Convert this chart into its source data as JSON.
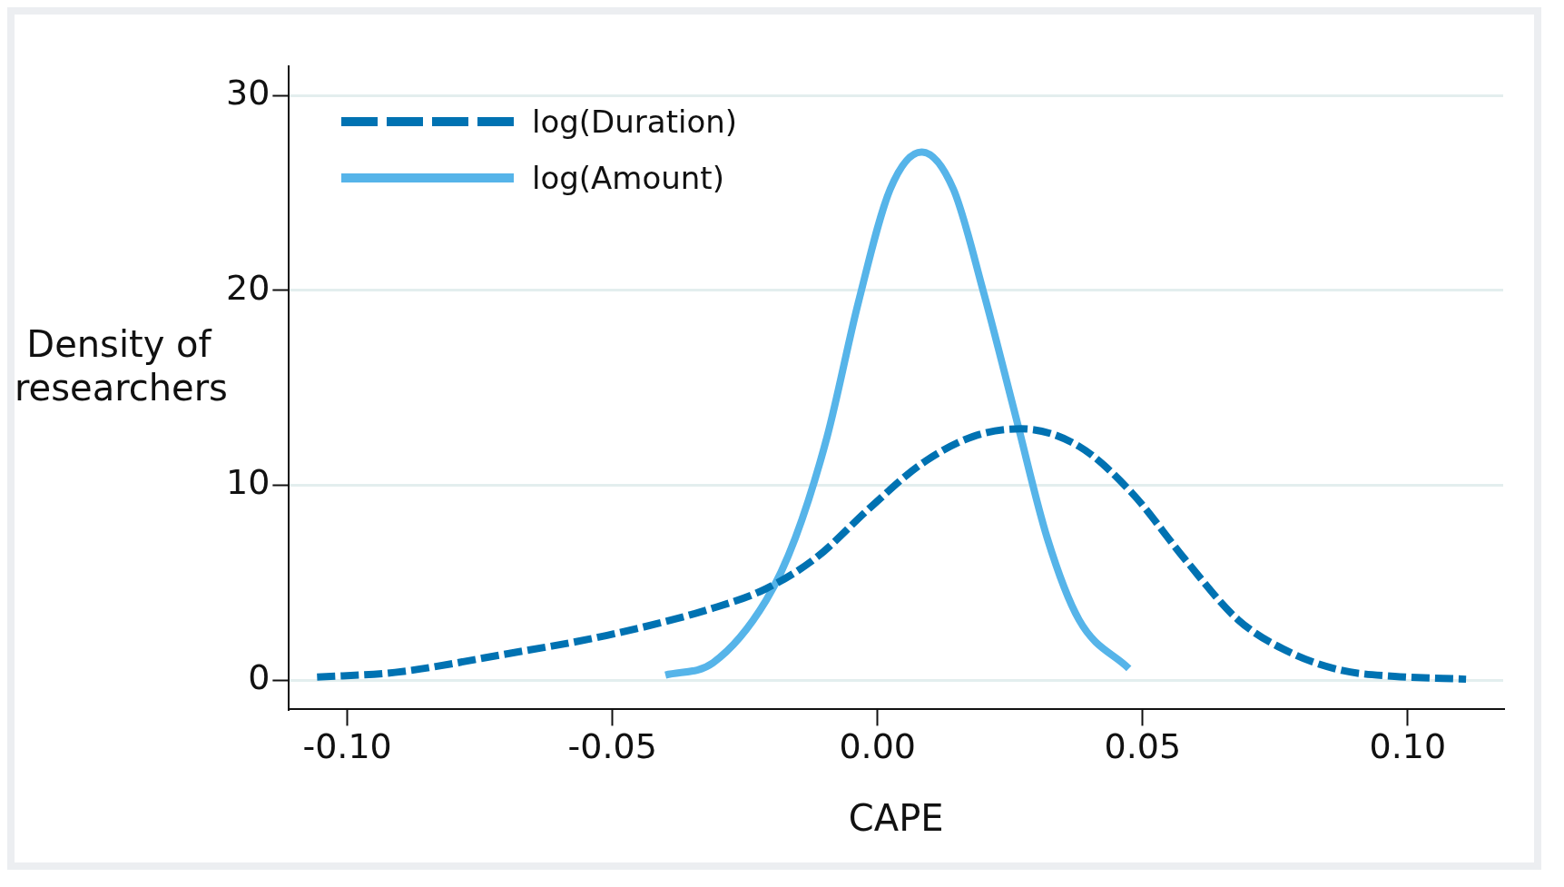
{
  "chart_data": {
    "type": "line",
    "xlabel": "CAPE",
    "ylabel": "Density of researchers",
    "xlim": [
      -0.111,
      0.118
    ],
    "ylim": [
      -1.5,
      31.5
    ],
    "xticks": [
      {
        "value": -0.1,
        "label": "-0.10"
      },
      -0.05,
      {
        "value": 0,
        "label": "0.00"
      },
      0.05,
      {
        "value": 0.1,
        "label": "0.10"
      }
    ],
    "yticks": [
      0,
      10,
      20,
      30
    ],
    "grid": "y",
    "legend": "top left",
    "marker": "none",
    "series": [
      {
        "name": "log(Duration)",
        "color": "#0072b2",
        "line_style": "dashed",
        "x": [
          -0.1057,
          -0.091,
          -0.071,
          -0.051,
          -0.031,
          -0.021,
          -0.0115,
          -0.0016,
          0.0083,
          0.018,
          0.027,
          0.038,
          0.048,
          0.058,
          0.068,
          0.078,
          0.0876,
          0.0975,
          0.111
        ],
        "values": [
          0.16,
          0.4,
          1.3,
          2.3,
          3.7,
          4.7,
          6.3,
          8.8,
          11.1,
          12.5,
          12.9,
          12.0,
          9.6,
          6.2,
          3.1,
          1.4,
          0.5,
          0.2,
          0.05
        ]
      },
      {
        "name": "log(Amount)",
        "color": "#56b4e9",
        "line_style": "solid",
        "x": [
          -0.04,
          -0.031,
          -0.021,
          -0.0155,
          -0.0095,
          -0.0036,
          0.0024,
          0.0083,
          0.0143,
          0.02,
          0.026,
          0.032,
          0.038,
          0.0474
        ],
        "values": [
          0.26,
          0.9,
          4.1,
          7.3,
          12.5,
          19.4,
          25.2,
          27.1,
          25.2,
          19.9,
          13.6,
          7.3,
          3.1,
          0.6
        ]
      }
    ]
  }
}
